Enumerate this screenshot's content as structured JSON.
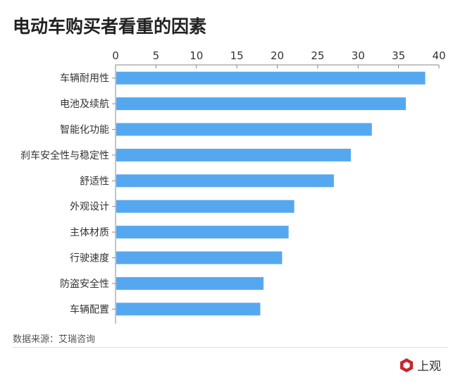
{
  "title": "电动车购买者看重的因素",
  "source": "数据来源：艾瑞咨询",
  "logo": "上观",
  "chart_data": {
    "type": "bar",
    "orientation": "horizontal",
    "categories": [
      "车辆耐用性",
      "电池及续航",
      "智能化功能",
      "刹车安全性与稳定性",
      "舒适性",
      "外观设计",
      "主体材质",
      "行驶速度",
      "防盗安全性",
      "车辆配置"
    ],
    "values": [
      38.3,
      35.9,
      31.7,
      29.1,
      27.0,
      22.1,
      21.4,
      20.6,
      18.3,
      17.9
    ],
    "xlim": [
      0,
      40
    ],
    "xticks": [
      0,
      5,
      10,
      15,
      20,
      25,
      30,
      35,
      40
    ],
    "axis_position": "top",
    "grid": false,
    "bar_color": "#55A8F0"
  }
}
